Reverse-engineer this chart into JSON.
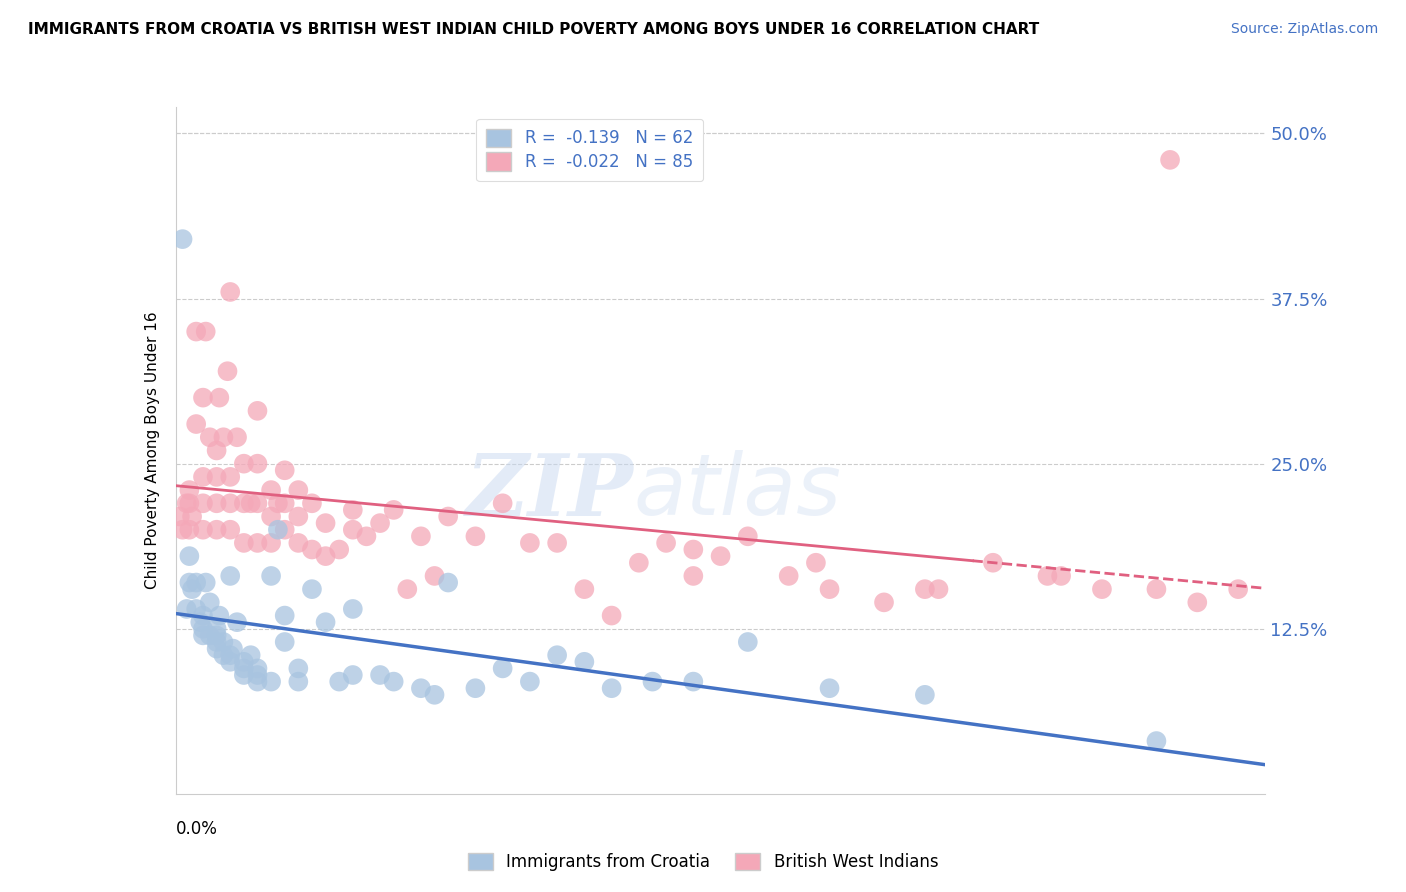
{
  "title": "IMMIGRANTS FROM CROATIA VS BRITISH WEST INDIAN CHILD POVERTY AMONG BOYS UNDER 16 CORRELATION CHART",
  "source": "Source: ZipAtlas.com",
  "ylabel": "Child Poverty Among Boys Under 16",
  "ytick_labels": [
    "",
    "12.5%",
    "25.0%",
    "37.5%",
    "50.0%"
  ],
  "ytick_values": [
    0,
    0.125,
    0.25,
    0.375,
    0.5
  ],
  "xlim": [
    0,
    0.08
  ],
  "ylim": [
    0,
    0.52
  ],
  "r_croatia": -0.139,
  "n_croatia": 62,
  "r_bwi": -0.022,
  "n_bwi": 85,
  "color_croatia": "#a8c4e0",
  "color_bwi": "#f4a8b8",
  "line_color_croatia": "#4472c4",
  "line_color_bwi": "#e06080",
  "legend_label_croatia": "Immigrants from Croatia",
  "legend_label_bwi": "British West Indians",
  "watermark_zip": "ZIP",
  "watermark_atlas": "atlas",
  "croatia_x": [
    0.0005,
    0.0008,
    0.001,
    0.001,
    0.0012,
    0.0015,
    0.0015,
    0.0018,
    0.002,
    0.002,
    0.002,
    0.0022,
    0.0025,
    0.0025,
    0.003,
    0.003,
    0.003,
    0.003,
    0.0032,
    0.0035,
    0.0035,
    0.004,
    0.004,
    0.004,
    0.0042,
    0.0045,
    0.005,
    0.005,
    0.005,
    0.0055,
    0.006,
    0.006,
    0.006,
    0.007,
    0.007,
    0.0075,
    0.008,
    0.008,
    0.009,
    0.009,
    0.01,
    0.011,
    0.012,
    0.013,
    0.013,
    0.015,
    0.016,
    0.018,
    0.019,
    0.02,
    0.022,
    0.024,
    0.026,
    0.028,
    0.03,
    0.032,
    0.035,
    0.038,
    0.042,
    0.048,
    0.055,
    0.072
  ],
  "croatia_y": [
    0.42,
    0.14,
    0.16,
    0.18,
    0.155,
    0.14,
    0.16,
    0.13,
    0.12,
    0.125,
    0.135,
    0.16,
    0.12,
    0.145,
    0.11,
    0.115,
    0.12,
    0.125,
    0.135,
    0.105,
    0.115,
    0.1,
    0.105,
    0.165,
    0.11,
    0.13,
    0.09,
    0.095,
    0.1,
    0.105,
    0.085,
    0.09,
    0.095,
    0.085,
    0.165,
    0.2,
    0.135,
    0.115,
    0.085,
    0.095,
    0.155,
    0.13,
    0.085,
    0.09,
    0.14,
    0.09,
    0.085,
    0.08,
    0.075,
    0.16,
    0.08,
    0.095,
    0.085,
    0.105,
    0.1,
    0.08,
    0.085,
    0.085,
    0.115,
    0.08,
    0.075,
    0.04
  ],
  "bwi_x": [
    0.0003,
    0.0005,
    0.0008,
    0.001,
    0.001,
    0.001,
    0.0012,
    0.0015,
    0.0015,
    0.002,
    0.002,
    0.002,
    0.002,
    0.0022,
    0.0025,
    0.003,
    0.003,
    0.003,
    0.003,
    0.0032,
    0.0035,
    0.0038,
    0.004,
    0.004,
    0.004,
    0.004,
    0.0045,
    0.005,
    0.005,
    0.005,
    0.0055,
    0.006,
    0.006,
    0.006,
    0.006,
    0.007,
    0.007,
    0.007,
    0.0075,
    0.008,
    0.008,
    0.008,
    0.009,
    0.009,
    0.009,
    0.01,
    0.01,
    0.011,
    0.011,
    0.012,
    0.013,
    0.013,
    0.014,
    0.015,
    0.016,
    0.017,
    0.018,
    0.019,
    0.02,
    0.022,
    0.024,
    0.026,
    0.028,
    0.03,
    0.032,
    0.034,
    0.036,
    0.038,
    0.04,
    0.042,
    0.045,
    0.048,
    0.052,
    0.056,
    0.06,
    0.064,
    0.068,
    0.073,
    0.047,
    0.038,
    0.055,
    0.065,
    0.072,
    0.075,
    0.078
  ],
  "bwi_y": [
    0.21,
    0.2,
    0.22,
    0.2,
    0.22,
    0.23,
    0.21,
    0.28,
    0.35,
    0.2,
    0.22,
    0.24,
    0.3,
    0.35,
    0.27,
    0.2,
    0.22,
    0.24,
    0.26,
    0.3,
    0.27,
    0.32,
    0.2,
    0.22,
    0.24,
    0.38,
    0.27,
    0.19,
    0.22,
    0.25,
    0.22,
    0.19,
    0.22,
    0.25,
    0.29,
    0.19,
    0.21,
    0.23,
    0.22,
    0.2,
    0.22,
    0.245,
    0.19,
    0.21,
    0.23,
    0.185,
    0.22,
    0.18,
    0.205,
    0.185,
    0.2,
    0.215,
    0.195,
    0.205,
    0.215,
    0.155,
    0.195,
    0.165,
    0.21,
    0.195,
    0.22,
    0.19,
    0.19,
    0.155,
    0.135,
    0.175,
    0.19,
    0.165,
    0.18,
    0.195,
    0.165,
    0.155,
    0.145,
    0.155,
    0.175,
    0.165,
    0.155,
    0.48,
    0.175,
    0.185,
    0.155,
    0.165,
    0.155,
    0.145,
    0.155
  ]
}
